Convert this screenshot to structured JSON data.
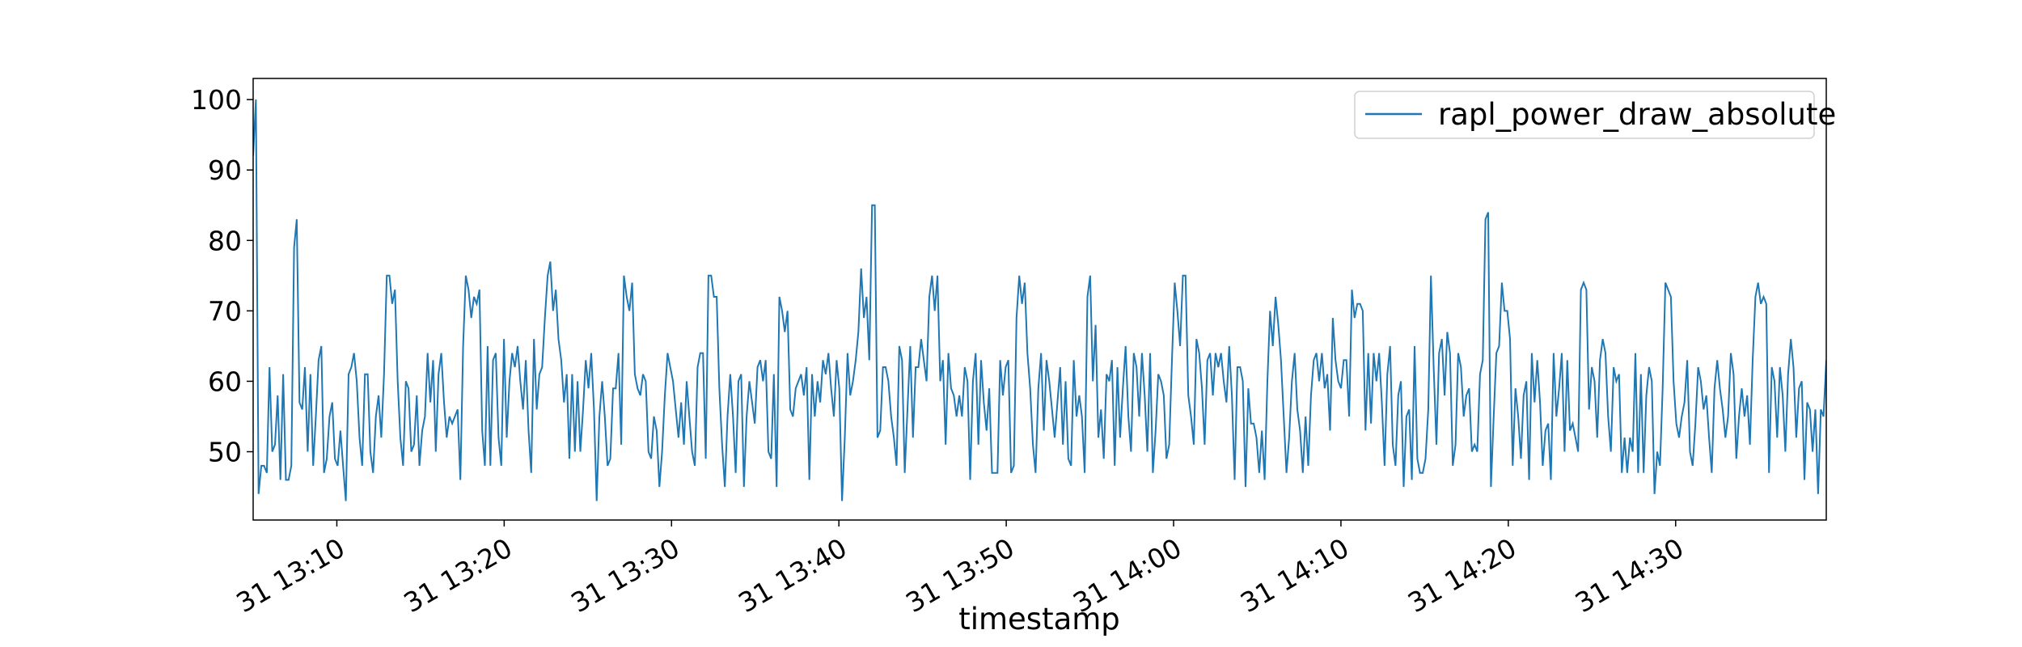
{
  "chart_data": {
    "type": "line",
    "title": "",
    "xlabel": "timestamp",
    "ylabel": "",
    "x_range": [
      "13:05:00",
      "14:39:00"
    ],
    "ylim": [
      40.3,
      103.0
    ],
    "x_tick_labels": [
      "31 13:10",
      "31 13:20",
      "31 13:30",
      "31 13:40",
      "31 13:50",
      "31 14:00",
      "31 14:10",
      "31 14:20",
      "31 14:30"
    ],
    "x_tick_times": [
      "13:10",
      "13:20",
      "13:30",
      "13:40",
      "13:50",
      "14:00",
      "14:10",
      "14:20",
      "14:30"
    ],
    "y_ticks": [
      50,
      60,
      70,
      80,
      90,
      100
    ],
    "legend_position": "upper right",
    "grid": false,
    "series": [
      {
        "name": "rapl_power_draw_absolute",
        "color": "#1f77b4",
        "x_start": "13:05:00",
        "x_end": "14:39:00",
        "values": [
          92,
          100,
          44,
          48,
          48,
          47,
          62,
          50,
          51,
          58,
          46,
          61,
          46,
          46,
          48,
          79,
          83,
          57,
          56,
          62,
          50,
          61,
          48,
          55,
          63,
          65,
          47,
          49,
          55,
          57,
          49,
          48,
          53,
          48,
          43,
          61,
          62,
          64,
          60,
          52,
          48,
          61,
          61,
          50,
          47,
          55,
          58,
          52,
          61,
          75,
          75,
          71,
          73,
          60,
          52,
          48,
          60,
          59,
          50,
          51,
          58,
          48,
          53,
          55,
          64,
          57,
          63,
          50,
          61,
          64,
          57,
          52,
          55,
          54,
          55,
          56,
          46,
          65,
          75,
          73,
          69,
          72,
          71,
          73,
          53,
          48,
          65,
          48,
          63,
          64,
          52,
          48,
          66,
          52,
          60,
          64,
          62,
          65,
          60,
          56,
          63,
          53,
          47,
          66,
          56,
          61,
          62,
          69,
          75,
          77,
          70,
          73,
          66,
          63,
          57,
          61,
          49,
          61,
          50,
          60,
          50,
          56,
          63,
          59,
          64,
          56,
          43,
          55,
          60,
          55,
          48,
          49,
          59,
          59,
          64,
          51,
          75,
          72,
          70,
          74,
          61,
          59,
          58,
          61,
          60,
          50,
          49,
          55,
          53,
          45,
          50,
          58,
          64,
          62,
          60,
          56,
          52,
          57,
          51,
          60,
          55,
          50,
          48,
          62,
          64,
          64,
          49,
          75,
          75,
          72,
          72,
          59,
          51,
          45,
          55,
          61,
          55,
          47,
          60,
          61,
          45,
          55,
          60,
          57,
          54,
          62,
          63,
          60,
          63,
          50,
          49,
          61,
          45,
          72,
          70,
          67,
          70,
          56,
          55,
          59,
          60,
          61,
          58,
          62,
          46,
          61,
          55,
          60,
          57,
          63,
          61,
          64,
          59,
          55,
          63,
          59,
          43,
          52,
          64,
          58,
          60,
          63,
          67,
          76,
          69,
          72,
          63,
          85,
          85,
          52,
          53,
          62,
          62,
          60,
          55,
          52,
          48,
          65,
          63,
          47,
          56,
          65,
          52,
          62,
          62,
          66,
          63,
          60,
          72,
          75,
          70,
          75,
          60,
          63,
          51,
          64,
          59,
          58,
          55,
          58,
          55,
          62,
          60,
          46,
          60,
          64,
          51,
          63,
          57,
          53,
          59,
          47,
          47,
          47,
          63,
          58,
          62,
          63,
          47,
          48,
          69,
          75,
          71,
          74,
          64,
          59,
          51,
          47,
          59,
          64,
          53,
          63,
          60,
          56,
          52,
          57,
          62,
          51,
          60,
          49,
          48,
          63,
          55,
          58,
          55,
          47,
          72,
          75,
          60,
          68,
          52,
          56,
          49,
          61,
          60,
          63,
          48,
          62,
          52,
          59,
          65,
          55,
          50,
          64,
          62,
          55,
          64,
          58,
          50,
          64,
          47,
          53,
          61,
          60,
          58,
          49,
          51,
          63,
          74,
          70,
          65,
          75,
          75,
          58,
          55,
          51,
          66,
          64,
          59,
          51,
          63,
          64,
          58,
          64,
          62,
          64,
          60,
          57,
          65,
          58,
          46,
          62,
          62,
          60,
          45,
          59,
          54,
          54,
          52,
          47,
          53,
          46,
          60,
          70,
          65,
          72,
          68,
          63,
          55,
          47,
          52,
          60,
          64,
          56,
          53,
          47,
          55,
          48,
          58,
          63,
          64,
          60,
          64,
          59,
          61,
          53,
          69,
          63,
          60,
          59,
          63,
          63,
          55,
          73,
          69,
          71,
          71,
          70,
          53,
          64,
          54,
          64,
          60,
          64,
          57,
          48,
          61,
          65,
          51,
          48,
          58,
          60,
          45,
          55,
          56,
          46,
          65,
          49,
          47,
          47,
          49,
          56,
          75,
          62,
          51,
          64,
          66,
          58,
          67,
          64,
          48,
          51,
          64,
          62,
          55,
          58,
          59,
          50,
          51,
          50,
          61,
          63,
          83,
          84,
          45,
          55,
          64,
          65,
          74,
          70,
          70,
          66,
          48,
          59,
          55,
          49,
          58,
          60,
          46,
          64,
          57,
          63,
          57,
          48,
          53,
          54,
          46,
          64,
          55,
          59,
          64,
          50,
          63,
          53,
          54,
          52,
          50,
          73,
          74,
          73,
          56,
          62,
          60,
          52,
          63,
          66,
          64,
          55,
          50,
          62,
          60,
          61,
          47,
          52,
          47,
          52,
          50,
          64,
          47,
          61,
          47,
          58,
          62,
          60,
          44,
          50,
          48,
          59,
          74,
          73,
          72,
          60,
          54,
          52,
          55,
          57,
          63,
          50,
          48,
          54,
          62,
          60,
          56,
          58,
          52,
          47,
          59,
          63,
          59,
          56,
          52,
          55,
          64,
          61,
          49,
          55,
          59,
          55,
          58,
          51,
          63,
          72,
          74,
          71,
          72,
          71,
          47,
          62,
          60,
          52,
          62,
          58,
          50,
          61,
          66,
          62,
          52,
          59,
          60,
          46,
          57,
          56,
          50,
          56,
          44,
          56,
          55,
          63
        ],
        "last_value": 63
      }
    ]
  }
}
